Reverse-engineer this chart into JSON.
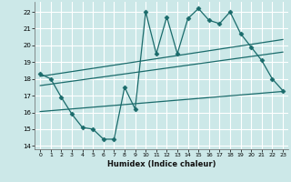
{
  "title": "",
  "xlabel": "Humidex (Indice chaleur)",
  "ylabel": "",
  "xlim": [
    -0.5,
    23.5
  ],
  "ylim": [
    13.8,
    22.6
  ],
  "yticks": [
    14,
    15,
    16,
    17,
    18,
    19,
    20,
    21,
    22
  ],
  "xticks": [
    0,
    1,
    2,
    3,
    4,
    5,
    6,
    7,
    8,
    9,
    10,
    11,
    12,
    13,
    14,
    15,
    16,
    17,
    18,
    19,
    20,
    21,
    22,
    23
  ],
  "background_color": "#cce8e8",
  "grid_color": "#ffffff",
  "line_color": "#1a6b6b",
  "main_x": [
    0,
    1,
    2,
    3,
    4,
    5,
    6,
    7,
    8,
    9,
    10,
    11,
    12,
    13,
    14,
    15,
    16,
    17,
    18,
    19,
    20,
    21,
    22,
    23
  ],
  "main_y": [
    18.3,
    18.0,
    16.9,
    15.9,
    15.1,
    15.0,
    14.4,
    14.4,
    17.5,
    16.2,
    22.0,
    19.5,
    21.7,
    19.5,
    21.6,
    22.2,
    21.5,
    21.3,
    22.0,
    20.7,
    19.9,
    19.1,
    18.0,
    17.3
  ],
  "upper_line_x": [
    0,
    23
  ],
  "upper_line_y": [
    18.15,
    20.35
  ],
  "middle_line_x": [
    0,
    23
  ],
  "middle_line_y": [
    17.6,
    19.6
  ],
  "lower_line_x": [
    0,
    23
  ],
  "lower_line_y": [
    16.05,
    17.25
  ]
}
